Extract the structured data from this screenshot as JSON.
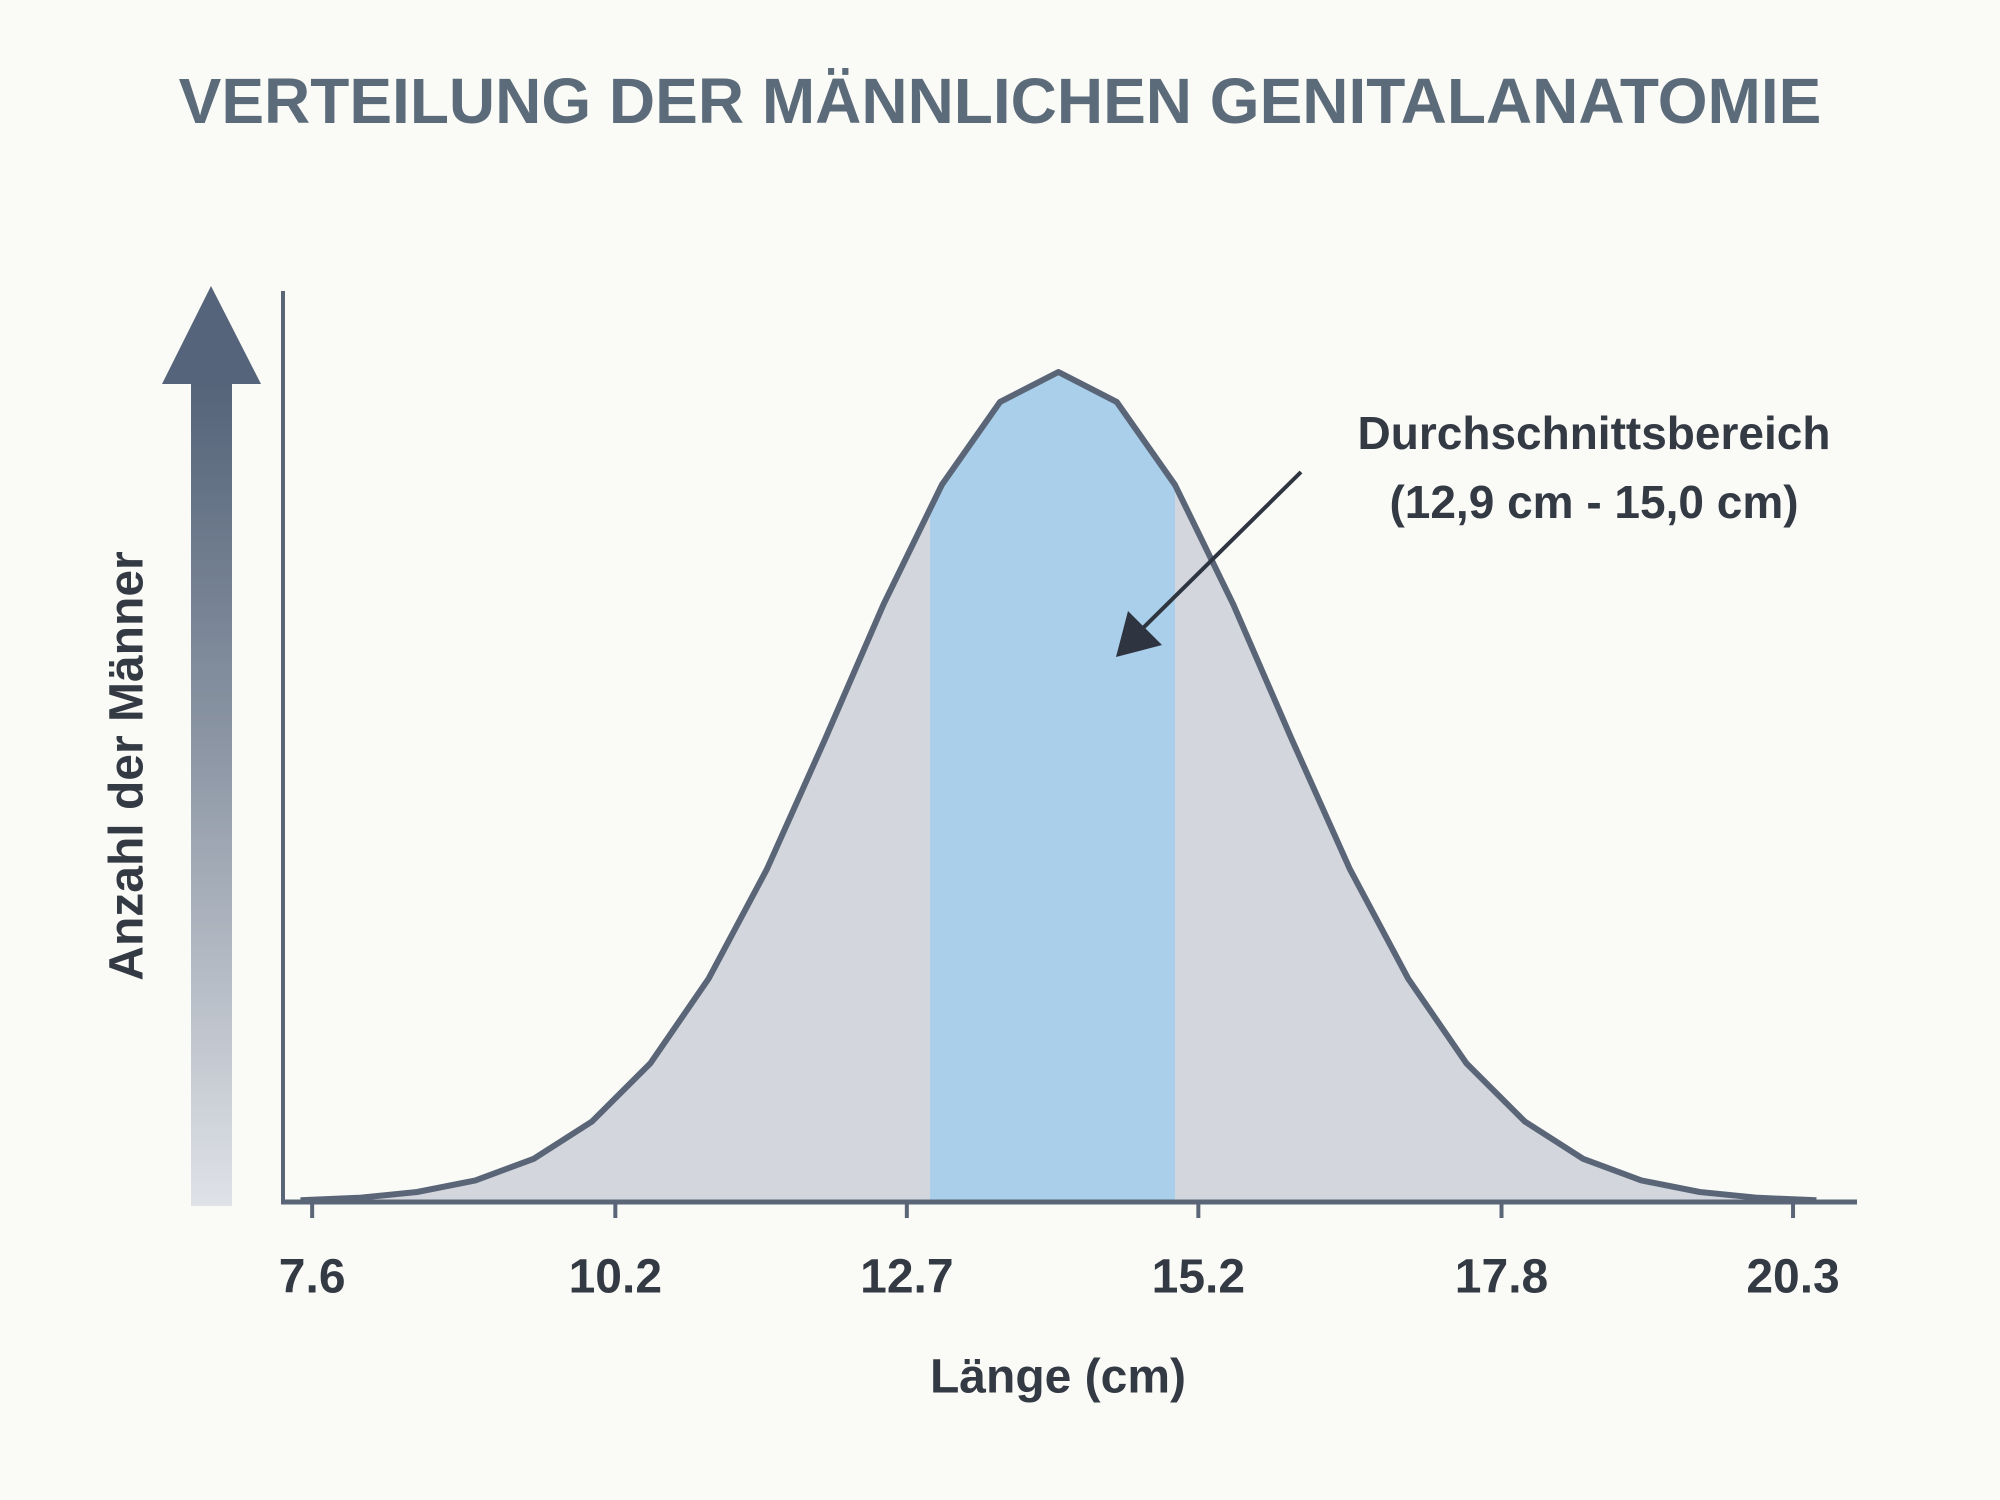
{
  "chart_data": {
    "type": "area",
    "title": "VERTEILUNG DER MÄNNLICHEN GENITALANATOMIE",
    "x_label": "Länge (cm)",
    "y_label": "Anzahl der Männer",
    "annotation": [
      "Durchschnittsbereich",
      "(12,9 cm - 15,0 cm)"
    ],
    "highlight": [
      12.9,
      15.0
    ],
    "highlight_color": "#a9cfea",
    "color": "#5a6678",
    "fill": "#d3d7dd",
    "x": [
      7.5,
      8,
      8.5,
      9,
      9.5,
      10,
      10.5,
      11,
      11.5,
      12,
      12.5,
      13,
      13.5,
      14,
      14.5,
      15,
      15.5,
      16,
      16.5,
      17,
      17.5,
      18,
      18.5,
      19,
      19.5,
      20,
      20.5
    ],
    "values": [
      0.2,
      0.5,
      1.2,
      2.6,
      5.2,
      9.7,
      16.7,
      26.9,
      40.1,
      55.8,
      72.0,
      86.4,
      96.4,
      100,
      96.4,
      86.4,
      72.0,
      55.8,
      40.1,
      26.9,
      16.7,
      9.7,
      5.2,
      2.6,
      1.2,
      0.5,
      0.2
    ],
    "xlim": [
      7.35,
      20.84
    ],
    "xticks": [
      7.6,
      10.2,
      12.7,
      15.2,
      17.8,
      20.3
    ],
    "ylim": [
      0,
      100
    ]
  }
}
